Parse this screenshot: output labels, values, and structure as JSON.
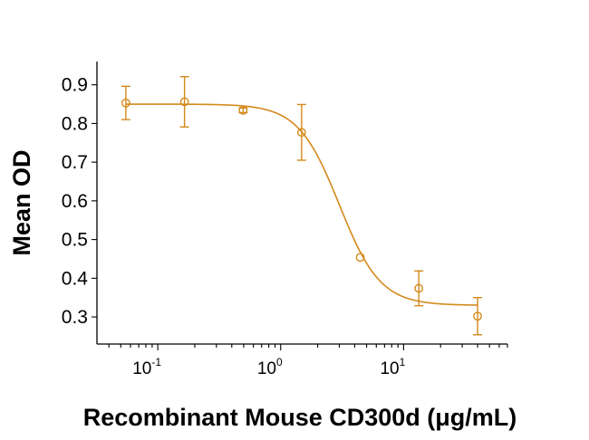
{
  "chart_data": {
    "type": "scatter",
    "title": "",
    "xlabel": "Recombinant Mouse CD300d (μg/mL)",
    "ylabel": "Mean OD",
    "x_scale": "log",
    "xlim": [
      0.032,
      70
    ],
    "ylim": [
      0.23,
      0.96
    ],
    "x_ticks": [
      {
        "value": 0.1,
        "base": "10",
        "exp": "-1"
      },
      {
        "value": 1,
        "base": "10",
        "exp": "0"
      },
      {
        "value": 10,
        "base": "10",
        "exp": "1"
      }
    ],
    "y_ticks": [
      {
        "value": 0.3,
        "label": "0.3"
      },
      {
        "value": 0.4,
        "label": "0.4"
      },
      {
        "value": 0.5,
        "label": "0.5"
      },
      {
        "value": 0.6,
        "label": "0.6"
      },
      {
        "value": 0.7,
        "label": "0.7"
      },
      {
        "value": 0.8,
        "label": "0.8"
      },
      {
        "value": 0.9,
        "label": "0.9"
      }
    ],
    "grid": false,
    "color": "#D4891C",
    "series": [
      {
        "points": [
          {
            "x": 0.055,
            "y": 0.853,
            "err": 0.043
          },
          {
            "x": 0.165,
            "y": 0.856,
            "err": 0.065
          },
          {
            "x": 0.495,
            "y": 0.834,
            "err": 0.006
          },
          {
            "x": 1.48,
            "y": 0.777,
            "err": 0.072
          },
          {
            "x": 4.44,
            "y": 0.454,
            "err": 0.0
          },
          {
            "x": 13.3,
            "y": 0.374,
            "err": 0.045
          },
          {
            "x": 40.0,
            "y": 0.302,
            "err": 0.048
          }
        ],
        "fit": {
          "model": "4PL",
          "top": 0.85,
          "bottom": 0.33,
          "ec50": 3.0,
          "hill": 2.6
        }
      }
    ]
  }
}
